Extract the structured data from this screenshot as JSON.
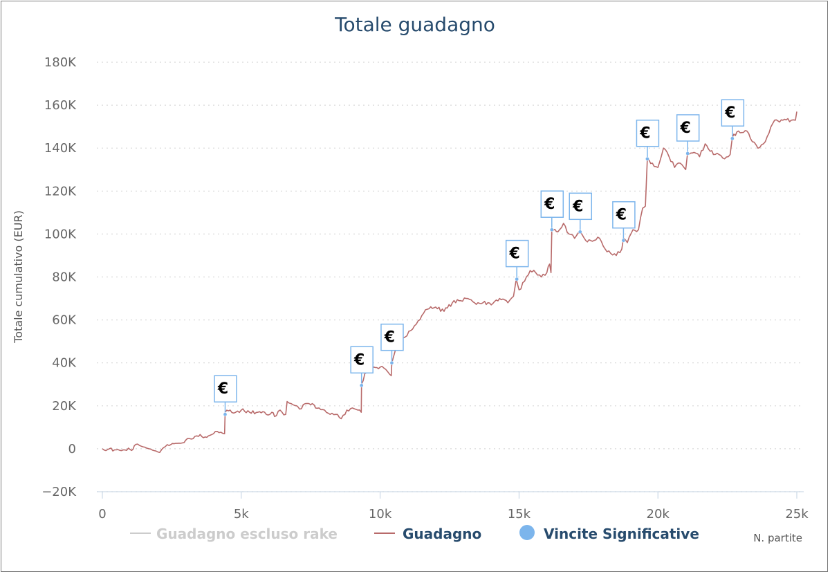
{
  "chart_data": {
    "type": "line",
    "title": "Totale guadagno",
    "ylabel": "Totale cumulativo (EUR)",
    "xlabel": "N. partite",
    "xlim": [
      0,
      25000
    ],
    "ylim": [
      -20000,
      180000
    ],
    "x_ticks": [
      {
        "value": 0,
        "label": "0"
      },
      {
        "value": 5000,
        "label": "5k"
      },
      {
        "value": 10000,
        "label": "10k"
      },
      {
        "value": 15000,
        "label": "15k"
      },
      {
        "value": 20000,
        "label": "20k"
      },
      {
        "value": 25000,
        "label": "25k"
      }
    ],
    "y_ticks": [
      {
        "value": -20000,
        "label": "−20K"
      },
      {
        "value": 0,
        "label": "0"
      },
      {
        "value": 20000,
        "label": "20K"
      },
      {
        "value": 40000,
        "label": "40K"
      },
      {
        "value": 60000,
        "label": "60K"
      },
      {
        "value": 80000,
        "label": "80K"
      },
      {
        "value": 100000,
        "label": "100K"
      },
      {
        "value": 120000,
        "label": "120K"
      },
      {
        "value": 140000,
        "label": "140K"
      },
      {
        "value": 160000,
        "label": "160K"
      },
      {
        "value": 180000,
        "label": "180K"
      }
    ],
    "grid": "horizontal-dotted",
    "legend_position": "bottom",
    "legend": [
      {
        "name": "Guadagno escluso rake",
        "color": "#cccccc",
        "symbol": "line",
        "hidden": true
      },
      {
        "name": "Guadagno",
        "color": "#b86a6a",
        "symbol": "line",
        "hidden": false
      },
      {
        "name": "Vincite Significative",
        "color": "#7cb5ec",
        "symbol": "dot",
        "hidden": false
      }
    ],
    "series": [
      {
        "name": "Guadagno",
        "color": "#b86a6a",
        "points": [
          [
            0,
            0
          ],
          [
            250,
            0
          ],
          [
            500,
            -500
          ],
          [
            750,
            -500
          ],
          [
            1000,
            -400
          ],
          [
            1100,
            -300
          ],
          [
            1200,
            2000
          ],
          [
            1400,
            1200
          ],
          [
            1600,
            300
          ],
          [
            1800,
            -600
          ],
          [
            2000,
            -1500
          ],
          [
            2200,
            500
          ],
          [
            2400,
            1500
          ],
          [
            2700,
            2500
          ],
          [
            3000,
            4000
          ],
          [
            3200,
            4500
          ],
          [
            3400,
            6000
          ],
          [
            3700,
            5500
          ],
          [
            4000,
            7000
          ],
          [
            4200,
            7500
          ],
          [
            4400,
            7000
          ],
          [
            4420,
            17000
          ],
          [
            4600,
            18000
          ],
          [
            4800,
            17000
          ],
          [
            5000,
            18000
          ],
          [
            5300,
            17000
          ],
          [
            5600,
            17000
          ],
          [
            5900,
            16000
          ],
          [
            6100,
            17000
          ],
          [
            6200,
            15000
          ],
          [
            6400,
            18000
          ],
          [
            6600,
            16000
          ],
          [
            6650,
            22000
          ],
          [
            6800,
            21000
          ],
          [
            7000,
            20000
          ],
          [
            7100,
            18500
          ],
          [
            7300,
            21000
          ],
          [
            7500,
            20500
          ],
          [
            7800,
            19000
          ],
          [
            8000,
            18000
          ],
          [
            8200,
            16000
          ],
          [
            8400,
            16000
          ],
          [
            8600,
            14000
          ],
          [
            8800,
            18000
          ],
          [
            9000,
            19000
          ],
          [
            9200,
            18000
          ],
          [
            9320,
            17000
          ],
          [
            9330,
            30000
          ],
          [
            9450,
            35000
          ],
          [
            9700,
            37000
          ],
          [
            10000,
            38000
          ],
          [
            10200,
            37000
          ],
          [
            10400,
            34000
          ],
          [
            10420,
            40000
          ],
          [
            10550,
            46000
          ],
          [
            10700,
            50000
          ],
          [
            10900,
            52000
          ],
          [
            11100,
            55000
          ],
          [
            11300,
            58000
          ],
          [
            11500,
            62000
          ],
          [
            11700,
            65000
          ],
          [
            12000,
            66000
          ],
          [
            12300,
            64000
          ],
          [
            12600,
            68000
          ],
          [
            12900,
            69000
          ],
          [
            13100,
            70000
          ],
          [
            13400,
            68000
          ],
          [
            13700,
            68000
          ],
          [
            14000,
            67000
          ],
          [
            14300,
            70000
          ],
          [
            14600,
            68000
          ],
          [
            14800,
            71000
          ],
          [
            14900,
            79000
          ],
          [
            15000,
            74000
          ],
          [
            15200,
            78000
          ],
          [
            15400,
            83000
          ],
          [
            15600,
            82000
          ],
          [
            15800,
            80000
          ],
          [
            16000,
            82000
          ],
          [
            16100,
            86000
          ],
          [
            16150,
            82000
          ],
          [
            16180,
            102000
          ],
          [
            16400,
            101000
          ],
          [
            16600,
            105000
          ],
          [
            16800,
            100000
          ],
          [
            17000,
            98000
          ],
          [
            17200,
            101000
          ],
          [
            17400,
            97000
          ],
          [
            17700,
            97000
          ],
          [
            17900,
            98000
          ],
          [
            18100,
            93000
          ],
          [
            18300,
            91000
          ],
          [
            18500,
            90000
          ],
          [
            18700,
            93000
          ],
          [
            18760,
            98000
          ],
          [
            18900,
            96000
          ],
          [
            19100,
            102000
          ],
          [
            19300,
            102000
          ],
          [
            19450,
            112000
          ],
          [
            19550,
            113000
          ],
          [
            19620,
            135000
          ],
          [
            19800,
            133000
          ],
          [
            20000,
            131000
          ],
          [
            20200,
            140000
          ],
          [
            20400,
            136000
          ],
          [
            20600,
            131000
          ],
          [
            20800,
            133000
          ],
          [
            21000,
            130000
          ],
          [
            21070,
            138000
          ],
          [
            21300,
            138000
          ],
          [
            21500,
            136000
          ],
          [
            21700,
            142000
          ],
          [
            22000,
            137000
          ],
          [
            22200,
            137000
          ],
          [
            22400,
            135000
          ],
          [
            22600,
            137000
          ],
          [
            22680,
            145000
          ],
          [
            22900,
            148000
          ],
          [
            23200,
            148000
          ],
          [
            23400,
            143000
          ],
          [
            23600,
            140000
          ],
          [
            23800,
            142000
          ],
          [
            24000,
            147000
          ],
          [
            24200,
            153000
          ],
          [
            24500,
            153000
          ],
          [
            24800,
            153000
          ],
          [
            24950,
            153000
          ],
          [
            25000,
            157000
          ]
        ]
      }
    ],
    "markers": {
      "name": "Vincite Significative",
      "color": "#7cb5ec",
      "label": "€",
      "points": [
        [
          4420,
          16000
        ],
        [
          9330,
          29500
        ],
        [
          10420,
          40000
        ],
        [
          14920,
          79000
        ],
        [
          16180,
          102000
        ],
        [
          17200,
          101000
        ],
        [
          18760,
          97000
        ],
        [
          19620,
          135000
        ],
        [
          21070,
          137500
        ],
        [
          22680,
          144500
        ]
      ]
    }
  }
}
